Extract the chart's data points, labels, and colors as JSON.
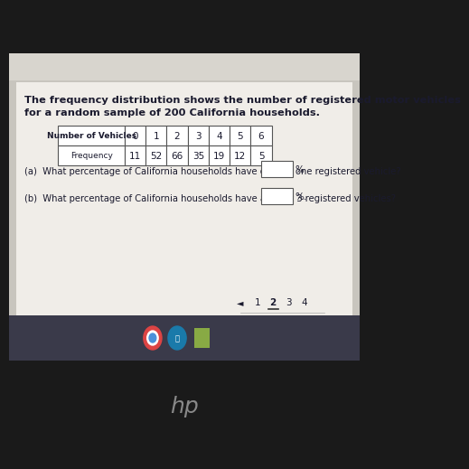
{
  "title_line1": "The frequency distribution shows the number of registered motor vehicles",
  "title_line2": "for a random sample of 200 California households.",
  "table_header": [
    "Number of Vehicles",
    "0",
    "1",
    "2",
    "3",
    "4",
    "5",
    "6"
  ],
  "table_row2_label": "Frequency",
  "table_row2_values": [
    "11",
    "52",
    "66",
    "35",
    "19",
    "12",
    "5"
  ],
  "question_a": "(a)  What percentage of California households have exactly one registered vehicle?",
  "question_b": "(b)  What percentage of California households have at least 3 registered vehicles?",
  "question_a_suffix": "%",
  "question_b_suffix": "%.",
  "page_numbers": [
    "1",
    "2",
    "3",
    "4"
  ],
  "current_page": "2",
  "screen_bg": "#c8c5be",
  "content_bg": "#f0ede8",
  "white": "#ffffff",
  "text_color": "#1a1a2e",
  "table_border_color": "#555555",
  "taskbar_color": "#3a3a4a",
  "taskbar_blue": "#4a6aaa",
  "laptop_body": "#1a1a1a",
  "nav_line_color": "#333333",
  "top_strip_color": "#d8d5ce"
}
